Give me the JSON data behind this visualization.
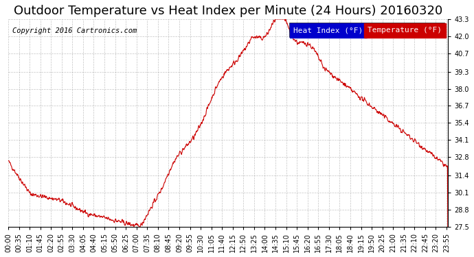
{
  "title": "Outdoor Temperature vs Heat Index per Minute (24 Hours) 20160320",
  "copyright": "Copyright 2016 Cartronics.com",
  "legend_labels": [
    "Heat Index (°F)",
    "Temperature (°F)"
  ],
  "legend_colors": [
    "#0000cc",
    "#cc0000"
  ],
  "line_color": "#cc0000",
  "background_color": "#ffffff",
  "grid_color": "#aaaaaa",
  "ylim": [
    27.5,
    43.3
  ],
  "yticks": [
    27.5,
    28.8,
    30.1,
    31.4,
    32.8,
    34.1,
    35.4,
    36.7,
    38.0,
    39.3,
    40.7,
    42.0,
    43.3
  ],
  "xtick_labels": [
    "00:00",
    "00:35",
    "01:10",
    "01:45",
    "02:20",
    "02:55",
    "03:30",
    "04:05",
    "04:40",
    "05:15",
    "05:50",
    "06:25",
    "07:00",
    "07:35",
    "08:10",
    "08:45",
    "09:20",
    "09:55",
    "10:30",
    "11:05",
    "11:40",
    "12:15",
    "12:50",
    "13:25",
    "14:00",
    "14:35",
    "15:10",
    "15:45",
    "16:20",
    "16:55",
    "17:30",
    "18:05",
    "18:40",
    "19:15",
    "19:50",
    "20:25",
    "21:00",
    "21:35",
    "22:10",
    "22:45",
    "23:20",
    "23:55"
  ],
  "title_fontsize": 13,
  "copyright_fontsize": 7.5,
  "tick_fontsize": 7,
  "legend_fontsize": 8
}
